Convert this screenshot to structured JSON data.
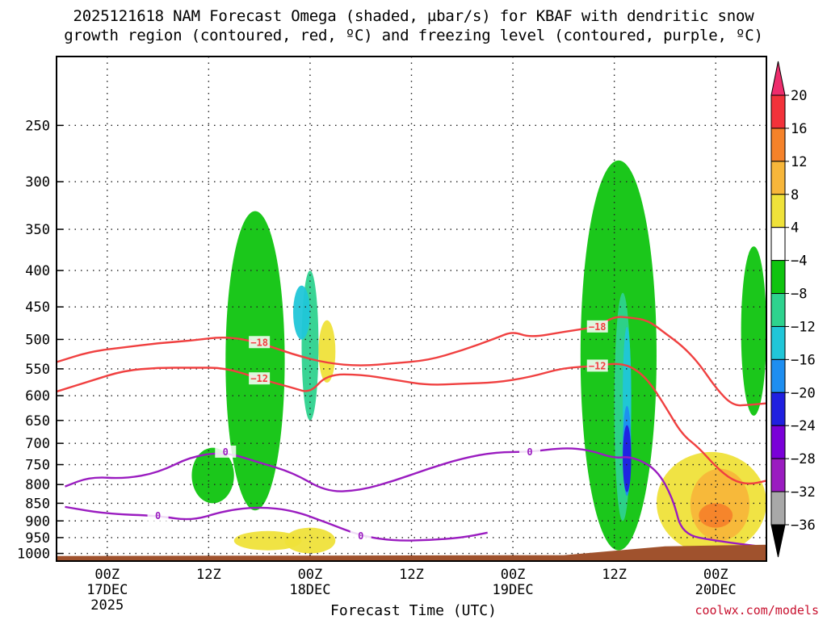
{
  "title": {
    "line1": "2025121618 NAM Forecast Omega (shaded, µbar/s) for KBAF with dendritic snow",
    "line2": "growth region (contoured, red, ºC) and freezing level (contoured, purple, ºC)"
  },
  "credit": "coolwx.com/models",
  "chart_data": {
    "type": "time-height",
    "title": "2025121618 NAM Forecast Omega (shaded, µbar/s) for KBAF with dendritic snow growth region (contoured, red, ºC) and freezing level (contoured, purple, ºC)",
    "xlabel": "Forecast Time (UTC)",
    "ylabel": "",
    "y_axis": {
      "scale": "log-pressure",
      "range_hPa": [
        1025,
        200
      ],
      "ticks": [
        250,
        300,
        350,
        400,
        450,
        500,
        550,
        600,
        650,
        700,
        750,
        800,
        850,
        900,
        950,
        1000
      ]
    },
    "x_axis": {
      "range_hours_from_2025121618": [
        0,
        84
      ],
      "ticks": [
        {
          "hour": 6,
          "lines": [
            "00Z",
            "17DEC",
            "2025"
          ]
        },
        {
          "hour": 18,
          "lines": [
            "12Z"
          ]
        },
        {
          "hour": 30,
          "lines": [
            "00Z",
            "18DEC"
          ]
        },
        {
          "hour": 42,
          "lines": [
            "12Z"
          ]
        },
        {
          "hour": 54,
          "lines": [
            "00Z",
            "19DEC"
          ]
        },
        {
          "hour": 66,
          "lines": [
            "12Z"
          ]
        },
        {
          "hour": 78,
          "lines": [
            "00Z",
            "20DEC"
          ]
        }
      ]
    },
    "grid": true,
    "colorbar": {
      "position": "right",
      "labels": [
        "20",
        "16",
        "12",
        "8",
        "4",
        "−4",
        "−8",
        "−12",
        "−16",
        "−20",
        "−24",
        "−28",
        "−32",
        "−36"
      ],
      "colors": [
        "#ee2c6c",
        "#f2323a",
        "#f5822a",
        "#f7b63a",
        "#efe23a",
        "#ffffff",
        "#0fc40f",
        "#2ed28e",
        "#20c6d8",
        "#1e8ef0",
        "#2020e0",
        "#7a00d8",
        "#9a1cc0",
        "#a8a8a8",
        "#000000"
      ]
    },
    "shading": [
      {
        "hours": [
          31,
          33
        ],
        "p_range": [
          575,
          470
        ],
        "omega": 4
      },
      {
        "hours": [
          27,
          33
        ],
        "p_range": [
          1000,
          920
        ],
        "omega": 4
      },
      {
        "hours": [
          21,
          29
        ],
        "p_range": [
          990,
          930
        ],
        "omega": 4
      },
      {
        "hours": [
          20,
          27
        ],
        "p_range": [
          870,
          330
        ],
        "omega": -8
      },
      {
        "hours": [
          29,
          31
        ],
        "p_range": [
          650,
          400
        ],
        "omega": -12
      },
      {
        "hours": [
          28,
          30
        ],
        "p_range": [
          500,
          420
        ],
        "omega": -16
      },
      {
        "hours": [
          16,
          21
        ],
        "p_range": [
          850,
          710
        ],
        "omega": -8
      },
      {
        "hours": [
          62,
          71
        ],
        "p_range": [
          990,
          280
        ],
        "omega": -8
      },
      {
        "hours": [
          66,
          68
        ],
        "p_range": [
          900,
          430
        ],
        "omega": -12
      },
      {
        "hours": [
          67,
          68
        ],
        "p_range": [
          750,
          480
        ],
        "omega": -16
      },
      {
        "hours": [
          67,
          68
        ],
        "p_range": [
          830,
          620
        ],
        "omega": -20
      },
      {
        "hours": [
          67,
          68
        ],
        "p_range": [
          820,
          660
        ],
        "omega": -24
      },
      {
        "hours": [
          71,
          84
        ],
        "p_range": [
          1000,
          720
        ],
        "omega": 4
      },
      {
        "hours": [
          75,
          82
        ],
        "p_range": [
          960,
          760
        ],
        "omega": 8
      },
      {
        "hours": [
          76,
          80
        ],
        "p_range": [
          920,
          850
        ],
        "omega": 12
      },
      {
        "hours": [
          81,
          84
        ],
        "p_range": [
          640,
          370
        ],
        "omega": -8
      }
    ],
    "contours": [
      {
        "name": "-18",
        "color": "#f04040",
        "label": "−18",
        "label_color": "#f04040",
        "points": [
          [
            0,
            538
          ],
          [
            4,
            520
          ],
          [
            8,
            513
          ],
          [
            12,
            506
          ],
          [
            16,
            502
          ],
          [
            20,
            495
          ],
          [
            24,
            505
          ],
          [
            28,
            525
          ],
          [
            32,
            540
          ],
          [
            36,
            545
          ],
          [
            40,
            540
          ],
          [
            44,
            535
          ],
          [
            48,
            518
          ],
          [
            52,
            498
          ],
          [
            54,
            487
          ],
          [
            56,
            497
          ],
          [
            60,
            488
          ],
          [
            64,
            480
          ],
          [
            66,
            464
          ],
          [
            68,
            466
          ],
          [
            70,
            470
          ],
          [
            72,
            490
          ],
          [
            74,
            510
          ],
          [
            76,
            540
          ],
          [
            78,
            585
          ],
          [
            80,
            620
          ],
          [
            82,
            618
          ],
          [
            84,
            615
          ]
        ]
      },
      {
        "name": "-12",
        "color": "#f04040",
        "label": "−12",
        "label_color": "#f04040",
        "points": [
          [
            0,
            592
          ],
          [
            4,
            572
          ],
          [
            8,
            553
          ],
          [
            12,
            548
          ],
          [
            16,
            548
          ],
          [
            20,
            548
          ],
          [
            24,
            568
          ],
          [
            28,
            585
          ],
          [
            30,
            595
          ],
          [
            32,
            560
          ],
          [
            36,
            560
          ],
          [
            40,
            570
          ],
          [
            44,
            580
          ],
          [
            48,
            577
          ],
          [
            52,
            575
          ],
          [
            56,
            565
          ],
          [
            60,
            548
          ],
          [
            64,
            545
          ],
          [
            66,
            540
          ],
          [
            68,
            545
          ],
          [
            70,
            570
          ],
          [
            72,
            620
          ],
          [
            74,
            680
          ],
          [
            76,
            710
          ],
          [
            78,
            755
          ],
          [
            80,
            790
          ],
          [
            82,
            800
          ],
          [
            84,
            790
          ]
        ]
      },
      {
        "name": "0",
        "color": "#9a1cc0",
        "label": "0",
        "label_color": "#9a1cc0",
        "points": [
          [
            1,
            805
          ],
          [
            4,
            780
          ],
          [
            8,
            785
          ],
          [
            12,
            770
          ],
          [
            16,
            730
          ],
          [
            20,
            720
          ],
          [
            24,
            745
          ],
          [
            28,
            770
          ],
          [
            32,
            820
          ],
          [
            36,
            815
          ],
          [
            40,
            790
          ],
          [
            44,
            760
          ],
          [
            48,
            735
          ],
          [
            52,
            720
          ],
          [
            56,
            720
          ],
          [
            60,
            710
          ],
          [
            63,
            715
          ],
          [
            66,
            735
          ],
          [
            68,
            730
          ],
          [
            71,
            760
          ],
          [
            73,
            840
          ],
          [
            74,
            940
          ],
          [
            78,
            960
          ],
          [
            84,
            980
          ]
        ]
      },
      {
        "name": "0-low",
        "color": "#9a1cc0",
        "label": "0",
        "label_color": "#9a1cc0",
        "points": [
          [
            1,
            860
          ],
          [
            6,
            880
          ],
          [
            12,
            885
          ],
          [
            16,
            900
          ],
          [
            20,
            870
          ],
          [
            24,
            860
          ],
          [
            28,
            870
          ],
          [
            32,
            905
          ],
          [
            36,
            945
          ],
          [
            40,
            960
          ],
          [
            44,
            958
          ],
          [
            48,
            950
          ],
          [
            51,
            935
          ]
        ]
      }
    ]
  }
}
